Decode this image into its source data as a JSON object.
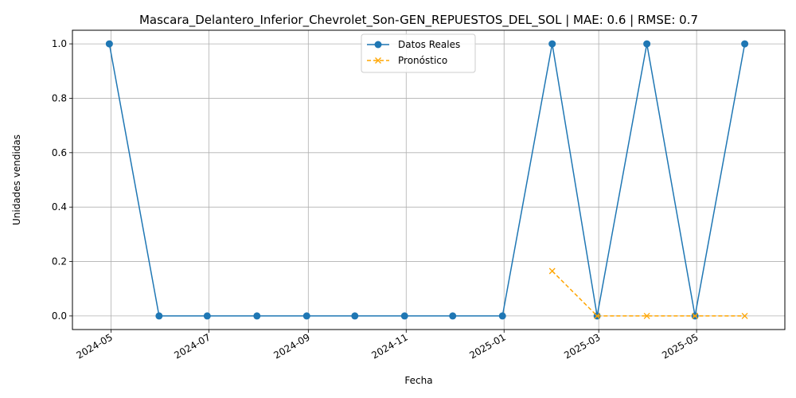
{
  "chart_data": {
    "type": "line",
    "title": "Mascara_Delantero_Inferior_Chevrolet_Son-GEN_REPUESTOS_DEL_SOL | MAE: 0.6 | RMSE: 0.7",
    "xlabel": "Fecha",
    "ylabel": "Unidades vendidas",
    "x_ticks": [
      "2024-05",
      "2024-07",
      "2024-09",
      "2024-11",
      "2025-01",
      "2025-03",
      "2025-05"
    ],
    "y_ticks": [
      "0.0",
      "0.2",
      "0.4",
      "0.6",
      "0.8",
      "1.0"
    ],
    "ylim": [
      -0.05,
      1.05
    ],
    "xlim": [
      "2024-04-07",
      "2025-06-25"
    ],
    "grid": true,
    "legend_position": "top-center",
    "series": [
      {
        "name": "Datos Reales",
        "color": "#1f77b4",
        "marker": "circle",
        "line_style": "solid",
        "x": [
          "2024-04-30",
          "2024-05-31",
          "2024-06-30",
          "2024-07-31",
          "2024-08-31",
          "2024-09-30",
          "2024-10-31",
          "2024-11-30",
          "2024-12-31",
          "2025-01-31",
          "2025-02-28",
          "2025-03-31",
          "2025-04-30",
          "2025-05-31"
        ],
        "values": [
          1,
          0,
          0,
          0,
          0,
          0,
          0,
          0,
          0,
          1,
          0,
          1,
          0,
          1
        ]
      },
      {
        "name": "Pronóstico",
        "color": "#ffa500",
        "marker": "x",
        "line_style": "dashed",
        "x": [
          "2025-01-31",
          "2025-02-28",
          "2025-03-31",
          "2025-04-30",
          "2025-05-31"
        ],
        "values": [
          0.165,
          0.0,
          0.0,
          0.0,
          0.0
        ]
      }
    ]
  }
}
